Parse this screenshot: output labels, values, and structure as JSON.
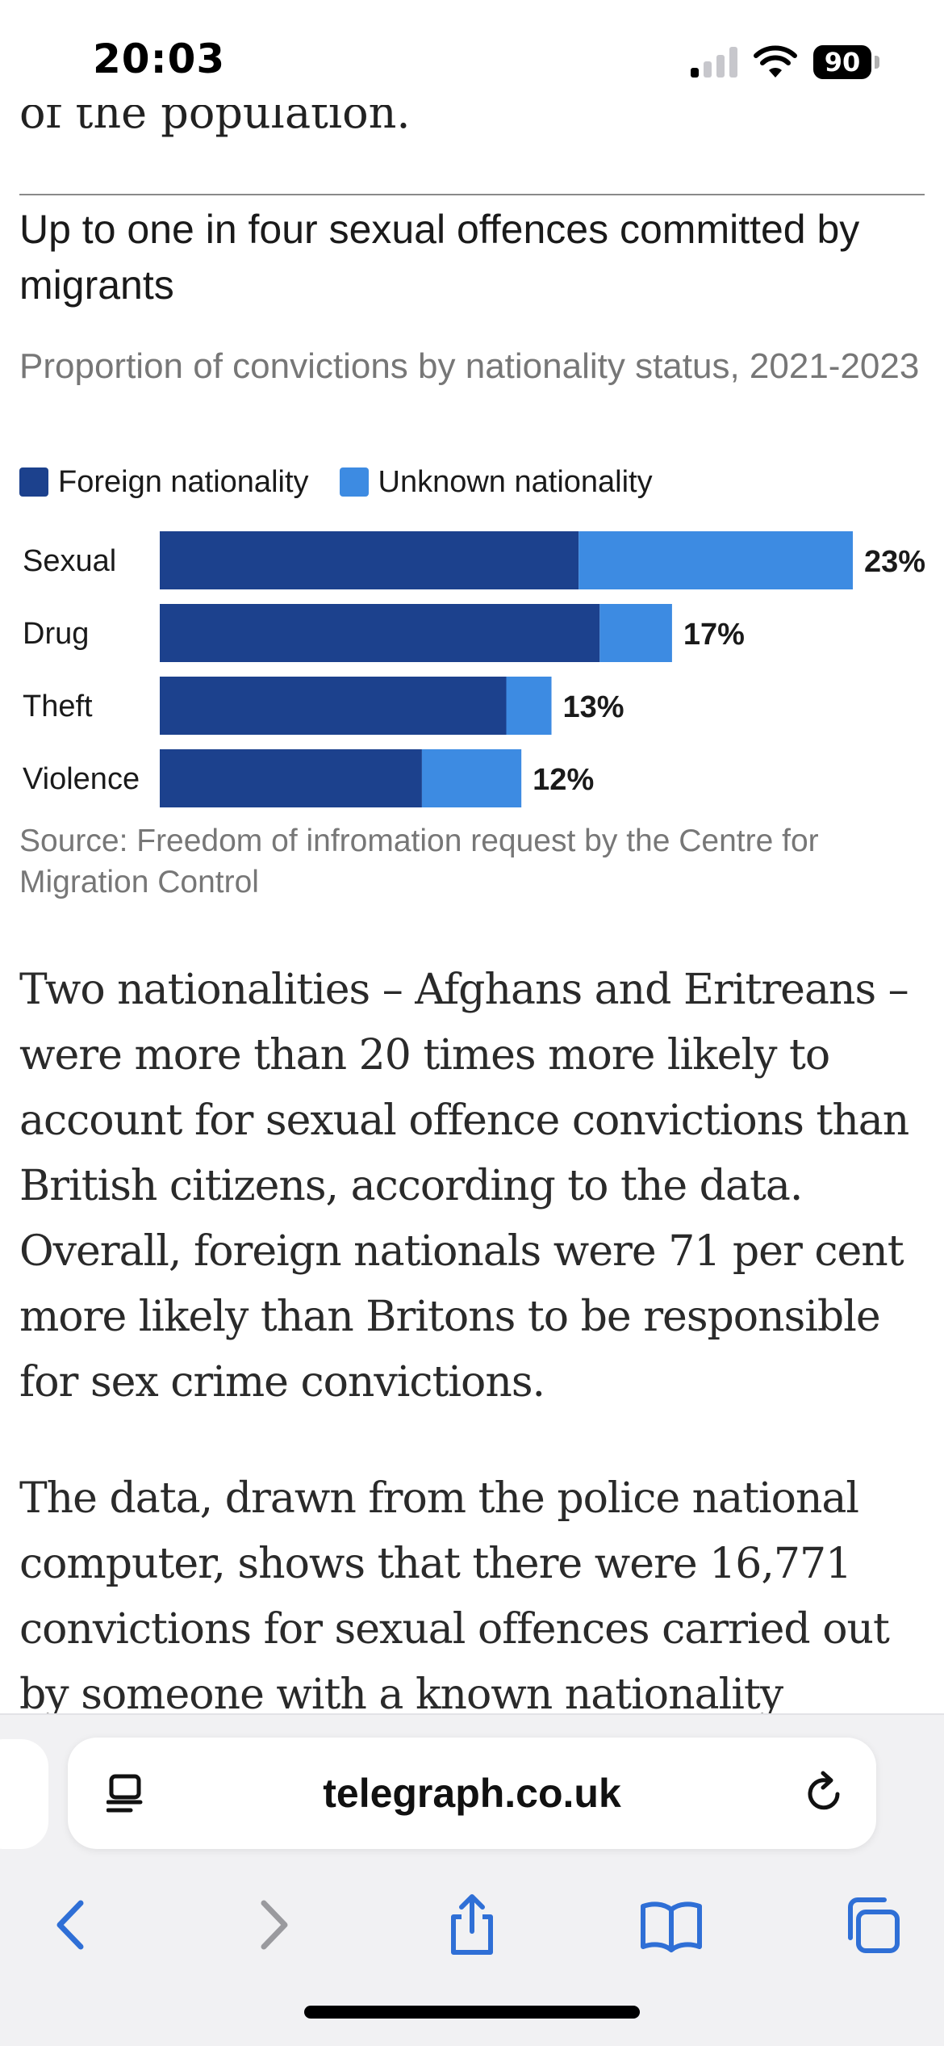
{
  "status_bar": {
    "time": "20:03",
    "battery": "90"
  },
  "article": {
    "prev_line": "of the population.",
    "paragraphs": [
      "Two nationalities – Afghans and Eritreans – were more than 20 times more likely to account for sexual offence convictions than British citizens, according to the data. Overall, foreign nationals were 71 per cent more likely than Britons to be responsible for sex crime convictions.",
      "The data, drawn from the police national computer, shows that there were 16,771 convictions for sexual offences carried out by someone with a known nationality"
    ]
  },
  "chart_data": {
    "type": "bar",
    "orientation": "horizontal",
    "stacked": true,
    "title": "Up to one in four sexual offences committed by migrants",
    "subtitle": "Proportion of convictions by nationality status, 2021-2023",
    "source": "Source: Freedom of infromation request by the Centre for Migration Control",
    "legend_position": "top-left",
    "grid": false,
    "categories": [
      "Sexual",
      "Drug",
      "Theft",
      "Violence"
    ],
    "series": [
      {
        "name": "Foreign nationality",
        "values": [
          13.9,
          14.6,
          11.5,
          8.7
        ],
        "color": "#1c418d"
      },
      {
        "name": "Unknown nationality",
        "values": [
          9.1,
          2.4,
          1.5,
          3.3
        ],
        "color": "#3d8be2"
      }
    ],
    "totals": [
      23,
      17,
      13,
      12
    ],
    "total_labels": [
      "23%",
      "17%",
      "13%",
      "12%"
    ],
    "xlim": [
      0,
      23
    ]
  },
  "browser": {
    "url": "telegraph.co.uk",
    "icons": {
      "reader": "reader-mode-icon",
      "reload": "reload-icon",
      "back": "back-chevron-icon",
      "forward": "forward-chevron-icon",
      "share": "share-icon",
      "bookmarks": "bookmarks-icon",
      "tabs": "tabs-icon"
    },
    "accent": "#2f6fd6"
  }
}
